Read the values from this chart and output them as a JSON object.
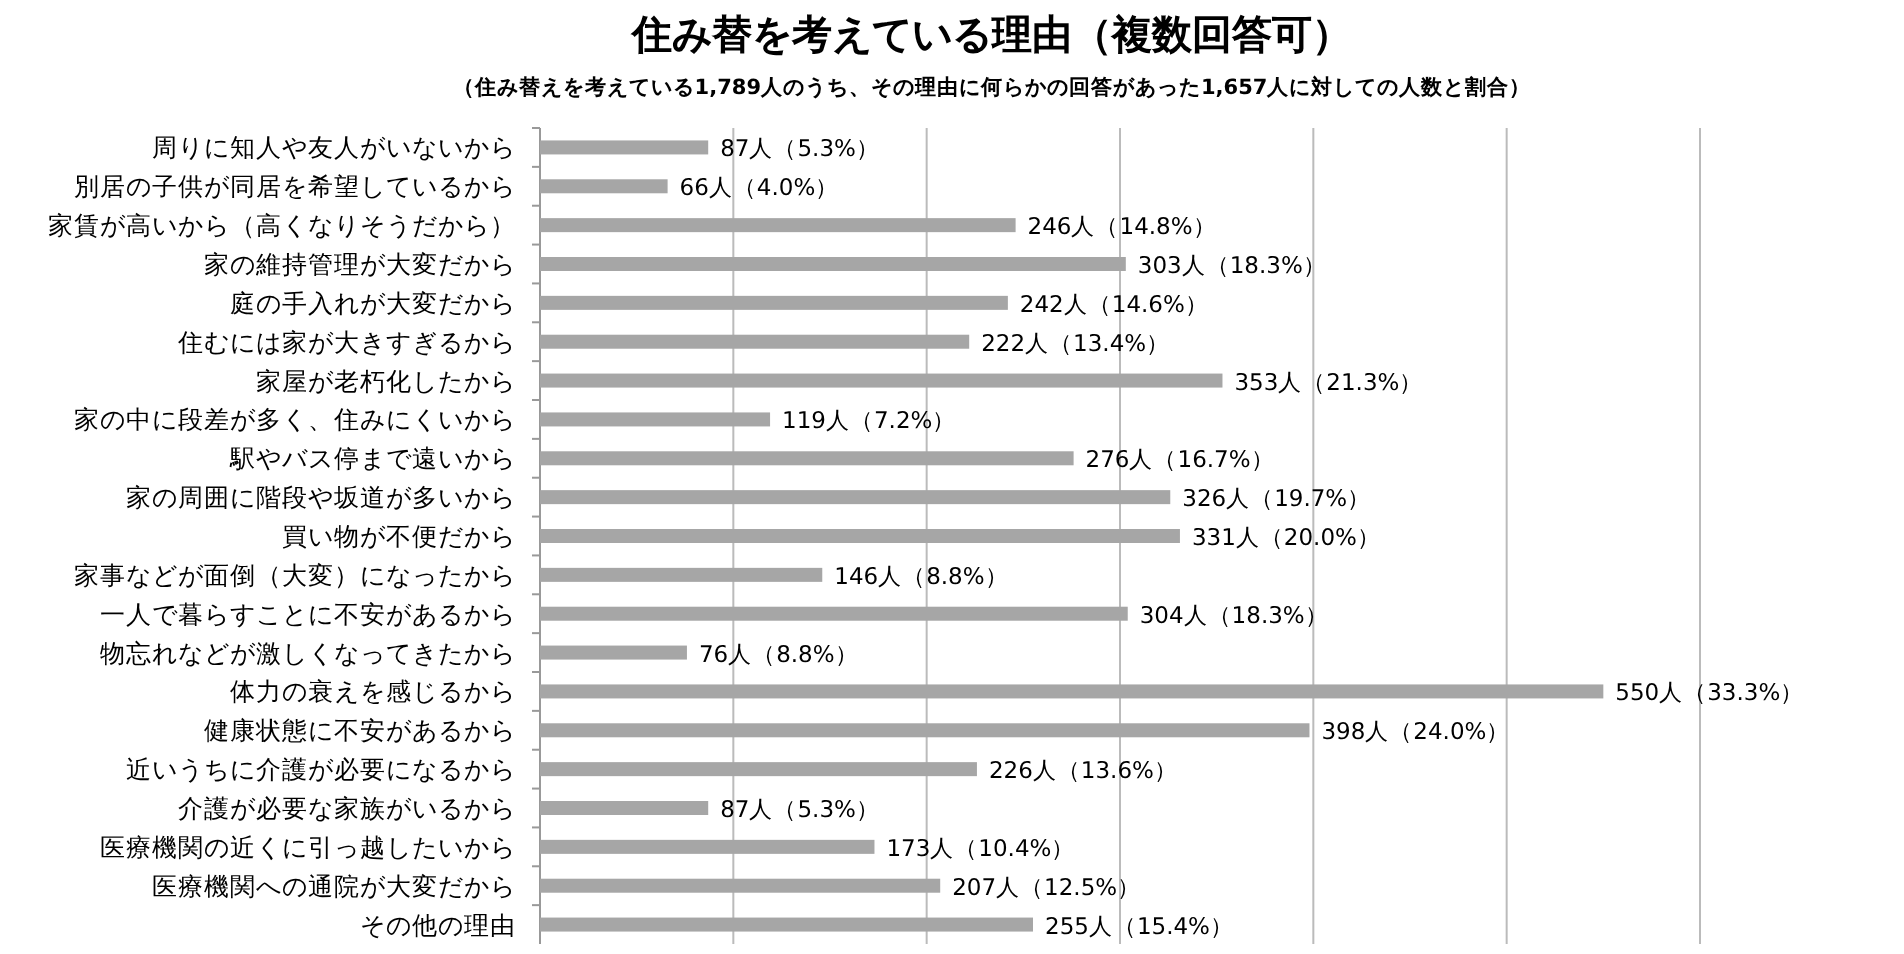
{
  "chart_data": {
    "type": "bar",
    "orientation": "horizontal",
    "title": "住み替を考えている理由（複数回答可）",
    "subtitle": "（住み替えを考えている1,789人のうち、その理由に何らかの回答があった1,657人に対しての人数と割合）",
    "categories": [
      "周りに知人や友人がいないから",
      "別居の子供が同居を希望しているから",
      "家賃が高いから（高くなりそうだから）",
      "家の維持管理が大変だから",
      "庭の手入れが大変だから",
      "住むには家が大きすぎるから",
      "家屋が老朽化したから",
      "家の中に段差が多く、住みにくいから",
      "駅やバス停まで遠いから",
      "家の周囲に階段や坂道が多いから",
      "買い物が不便だから",
      "家事などが面倒（大変）になったから",
      "一人で暮らすことに不安があるから",
      "物忘れなどが激しくなってきたから",
      "体力の衰えを感じるから",
      "健康状態に不安があるから",
      "近いうちに介護が必要になるから",
      "介護が必要な家族がいるから",
      "医療機関の近くに引っ越したいから",
      "医療機関への通院が大変だから",
      "その他の理由"
    ],
    "values": [
      87,
      66,
      246,
      303,
      242,
      222,
      353,
      119,
      276,
      326,
      331,
      146,
      304,
      76,
      550,
      398,
      226,
      87,
      173,
      207,
      255
    ],
    "value_labels": [
      "87人（5.3%）",
      "66人（4.0%）",
      "246人（14.8%）",
      "303人（18.3%）",
      "242人（14.6%）",
      "222人（13.4%）",
      "353人（21.3%）",
      "119人（7.2%）",
      "276人（16.7%）",
      "326人（19.7%）",
      "331人（20.0%）",
      "146人（8.8%）",
      "304人（18.3%）",
      "76人（8.8%）",
      "550人（33.3%）",
      "398人（24.0%）",
      "226人（13.6%）",
      "87人（5.3%）",
      "173人（10.4%）",
      "207人（12.5%）",
      "255人（15.4%）"
    ],
    "color": "#a6a6a6",
    "xlim": [
      0,
      600
    ],
    "xticks": [
      {
        "value": 0,
        "label": null
      },
      {
        "value": 100,
        "label": null
      },
      {
        "value": 200,
        "label": null
      },
      {
        "value": 300,
        "label": null
      },
      {
        "value": 400,
        "label": null
      },
      {
        "value": 500,
        "label": null
      },
      {
        "value": 600,
        "label": null
      }
    ],
    "grid": "x",
    "tick_labels": "y"
  }
}
